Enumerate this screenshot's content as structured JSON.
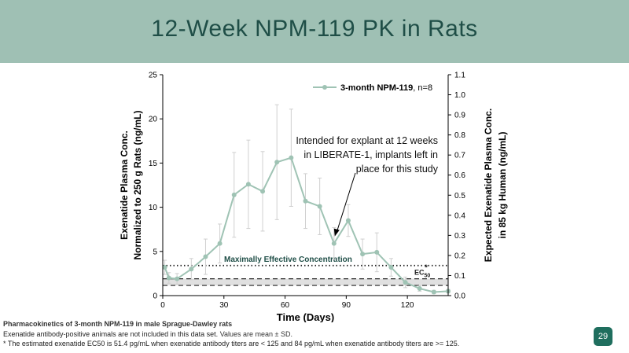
{
  "slide": {
    "title": "12-Week NPM-119 PK in Rats",
    "page_number": "29"
  },
  "footnotes": {
    "title": "Pharmacokinetics of 3-month NPM-119 in male Sprague-Dawley rats",
    "line1_main": "Exenatide antibody-positive animals are not included in this data set.",
    "line1_tail": "Values are mean ± SD.",
    "line2": "* The estimated exenatide EC50 is 51.4 pg/mL when exenatide antibody titers are < 125 and 84 pg/mL when exenatide antibody titers are >= 125."
  },
  "colors": {
    "header": "#9fc0b4",
    "title_text": "#1f4e47",
    "series": "#9fc3b4",
    "error_bars": "#cfcfcf",
    "band_fill": "#e0e0e0",
    "annotation_text": "#1f4e47",
    "badge": "#1f6e5e"
  },
  "chart_data": {
    "type": "line",
    "xlabel": "Time (Days)",
    "ylabel_line1": "Exenatide Plasma Conc.",
    "ylabel_line2": "Normalized to 250 g Rats (ng/mL)",
    "y2label_line1": "Expected Exenatide Plasma Conc.",
    "y2label_line2": "in 85 kg Human (ng/mL)",
    "xlim": [
      0,
      140
    ],
    "ylim": [
      0,
      25
    ],
    "y2lim": [
      0,
      1.1
    ],
    "x_ticks": [
      0,
      30,
      60,
      90,
      120
    ],
    "y_ticks": [
      0,
      5,
      10,
      15,
      20,
      25
    ],
    "y2_ticks": [
      "0.0",
      "0.1",
      "0.2",
      "0.3",
      "0.4",
      "0.5",
      "0.6",
      "0.7",
      "0.8",
      "0.9",
      "1.0",
      "1.1"
    ],
    "legend": {
      "series_label": "3-month NPM-119",
      "n_label": ", n=8",
      "position": "top-right"
    },
    "series": [
      {
        "name": "3-month NPM-119",
        "x": [
          1,
          3,
          7,
          14,
          21,
          28,
          35,
          42,
          49,
          56,
          63,
          70,
          77,
          84,
          91,
          98,
          105,
          112,
          119,
          126,
          133,
          140
        ],
        "y": [
          3.2,
          2.0,
          1.9,
          3.0,
          4.4,
          5.9,
          11.4,
          12.6,
          11.8,
          15.1,
          15.6,
          10.7,
          10.1,
          5.9,
          8.5,
          4.7,
          4.9,
          3.2,
          1.5,
          0.8,
          0.4,
          0.5
        ],
        "sd": [
          0.8,
          0.6,
          0.6,
          1.2,
          2.0,
          2.2,
          4.8,
          5.0,
          4.5,
          6.5,
          5.5,
          3.1,
          3.2,
          1.8,
          1.8,
          1.7,
          2.2,
          1.0,
          0.6,
          0.3,
          0.2,
          0.2
        ]
      }
    ],
    "reference_lines": [
      {
        "name": "maximally-effective",
        "y": 3.4,
        "style": "dotted",
        "label": "Maximally Effective Concentration"
      },
      {
        "name": "ec50-upper",
        "y": 1.9,
        "style": "dashed"
      },
      {
        "name": "ec50-lower",
        "y": 1.15,
        "style": "dashed"
      }
    ],
    "ec50_label": {
      "base": "EC",
      "sub": "50",
      "star": "*"
    },
    "annotation": {
      "lines": [
        "Intended for explant at 12 weeks",
        "in LIBERATE-1, implants left in",
        "place for this study"
      ],
      "points_to": {
        "x": 84,
        "y": 5.9
      }
    }
  }
}
